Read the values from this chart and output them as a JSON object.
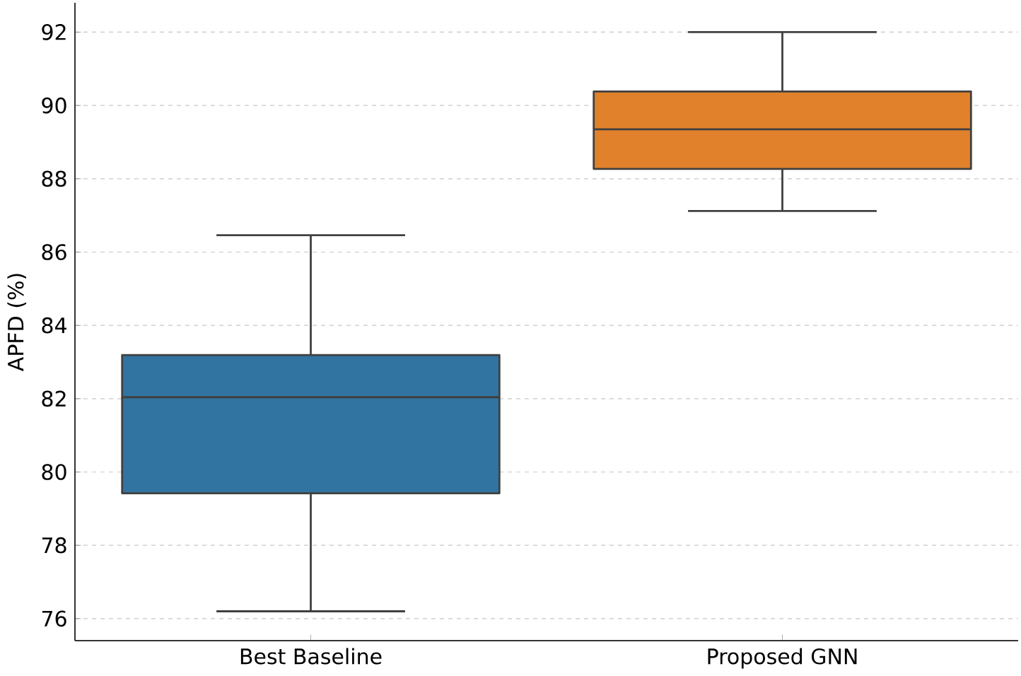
{
  "chart_data": {
    "type": "box",
    "ylabel": "APFD (%)",
    "categories": [
      "Best Baseline",
      "Proposed GNN"
    ],
    "boxes": [
      {
        "low": 76.2,
        "q1": 79.42,
        "median": 82.04,
        "q3": 83.19,
        "high": 86.46
      },
      {
        "low": 87.12,
        "q1": 88.27,
        "median": 89.35,
        "q3": 90.38,
        "high": 92.0
      }
    ],
    "colors": [
      "#3274a1",
      "#e1812c"
    ],
    "ylim": [
      75.4,
      92.8
    ],
    "yticks": [
      76,
      78,
      80,
      82,
      84,
      86,
      88,
      90,
      92
    ],
    "grid": "y"
  }
}
